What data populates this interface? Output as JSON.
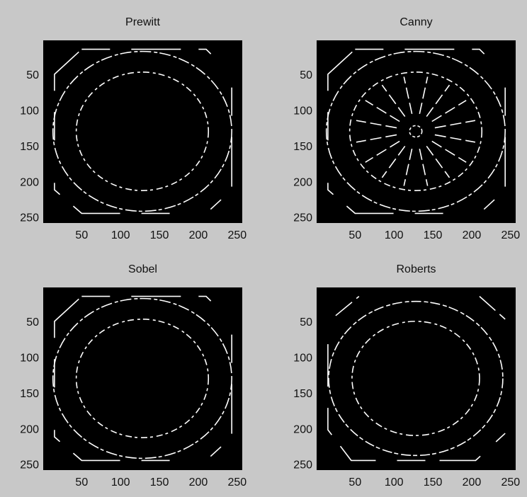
{
  "chart_data": [
    {
      "type": "image",
      "title": "Prewitt",
      "xlim": [
        0.5,
        256.5
      ],
      "ylim": [
        256.5,
        0.5
      ],
      "xticks": [
        50,
        100,
        150,
        200,
        250
      ],
      "yticks": [
        50,
        100,
        150,
        200,
        250
      ]
    },
    {
      "type": "image",
      "title": "Canny",
      "xlim": [
        0.5,
        256.5
      ],
      "ylim": [
        256.5,
        0.5
      ],
      "xticks": [
        50,
        100,
        150,
        200,
        250
      ],
      "yticks": [
        50,
        100,
        150,
        200,
        250
      ]
    },
    {
      "type": "image",
      "title": "Sobel",
      "xlim": [
        0.5,
        256.5
      ],
      "ylim": [
        256.5,
        0.5
      ],
      "xticks": [
        50,
        100,
        150,
        200,
        250
      ],
      "yticks": [
        50,
        100,
        150,
        200,
        250
      ]
    },
    {
      "type": "image",
      "title": "Roberts",
      "xlim": [
        0.5,
        256.5
      ],
      "ylim": [
        256.5,
        0.5
      ],
      "xticks": [
        50,
        100,
        150,
        200,
        250
      ],
      "yticks": [
        50,
        100,
        150,
        200,
        250
      ]
    }
  ]
}
